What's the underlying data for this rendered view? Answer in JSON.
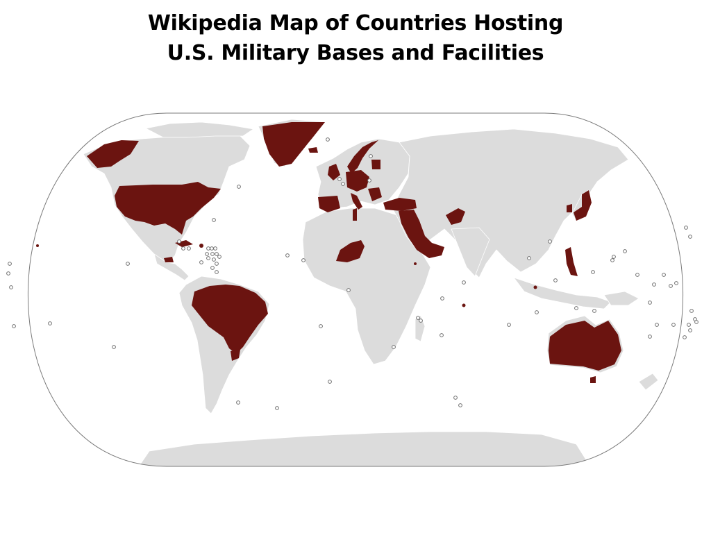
{
  "title": {
    "line1": "Wikipedia Map of Countries Hosting",
    "line2": "U.S. Military Bases and Facilities"
  },
  "colors": {
    "host": "#6b1410",
    "land": "#dcdcdc",
    "outline": "#7a7a7a",
    "background": "#ffffff"
  },
  "legend": "none",
  "projection": "Robinson-style world map, oval outline",
  "host_countries": [
    "United States",
    "Alaska",
    "Greenland",
    "Cuba (Guantanamo)",
    "Honduras",
    "Puerto Rico",
    "Brazil",
    "Uruguay",
    "Iceland",
    "Norway",
    "United Kingdom",
    "Germany",
    "Netherlands",
    "Belgium",
    "Poland",
    "Lithuania",
    "Latvia",
    "Estonia",
    "Romania",
    "Bulgaria",
    "Hungary",
    "Italy",
    "Spain",
    "Portugal",
    "Greece",
    "Turkey",
    "Syria",
    "Iraq",
    "Saudi Arabia",
    "Kuwait",
    "Qatar",
    "Bahrain",
    "United Arab Emirates",
    "Oman",
    "Jordan",
    "Israel",
    "Tunisia",
    "Niger",
    "Djibouti",
    "Afghanistan",
    "South Korea",
    "Japan",
    "Philippines",
    "Singapore",
    "Australia",
    "Diego Garcia",
    "Kosovo",
    "Cyprus"
  ]
}
